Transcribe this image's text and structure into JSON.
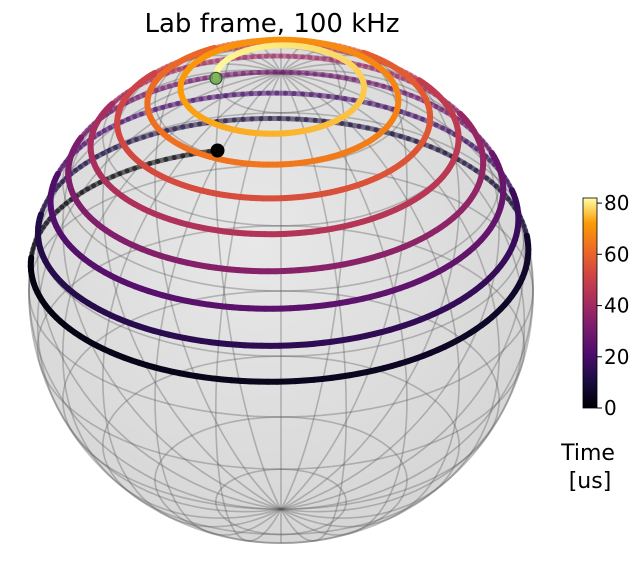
{
  "chart_data": {
    "type": "bloch-sphere-trajectory",
    "title": "Lab frame, 100 kHz",
    "colorbar": {
      "label_line1": "Time",
      "label_line2": "[us]",
      "range": [
        0,
        82
      ],
      "ticks": [
        "0",
        "20",
        "40",
        "60",
        "80"
      ],
      "tick_values": [
        0,
        20,
        40,
        60,
        80
      ],
      "colormap": "inferno"
    },
    "trajectory": {
      "time_range_us": [
        0,
        82
      ],
      "description_of_motion": "spiral from equator to near pole",
      "polar_angle_start_deg": 85,
      "polar_angle_end_deg": 15,
      "turns": 8.2
    },
    "markers": {
      "start": {
        "color": "#000000"
      },
      "end": {
        "color": "#6aa84f"
      }
    },
    "view": {
      "elevation_deg": 30,
      "azimuth_deg": -60
    },
    "grid": true
  }
}
